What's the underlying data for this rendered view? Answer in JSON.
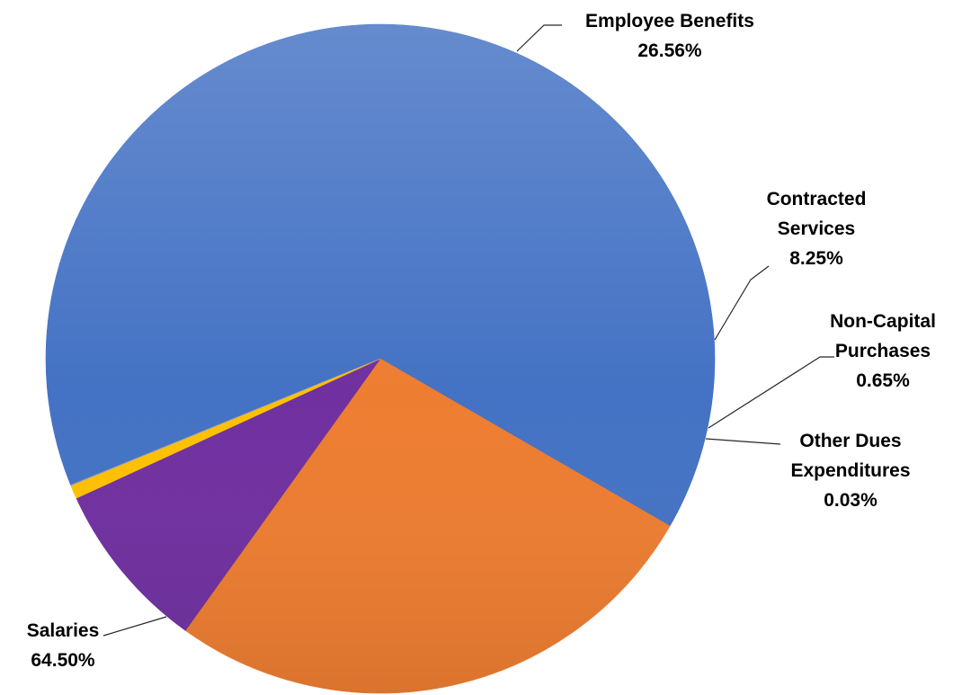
{
  "chart_data": {
    "type": "pie",
    "title": "",
    "slices": [
      {
        "label_lines": [
          "Salaries"
        ],
        "label": "Salaries",
        "value": 64.5,
        "value_text": "64.50%",
        "color": "#4472C4"
      },
      {
        "label_lines": [
          "Employee Benefits"
        ],
        "label": "Employee Benefits",
        "value": 26.56,
        "value_text": "26.56%",
        "color": "#ED7D31"
      },
      {
        "label_lines": [
          "Contracted",
          "Services"
        ],
        "label": "Contracted Services",
        "value": 8.25,
        "value_text": "8.25%",
        "color": "#7030A0"
      },
      {
        "label_lines": [
          "Non-Capital",
          "Purchases"
        ],
        "label": "Non-Capital Purchases",
        "value": 0.65,
        "value_text": "0.65%",
        "color": "#FFC000"
      },
      {
        "label_lines": [
          "Other Dues",
          "Expenditures"
        ],
        "label": "Other Dues Expenditures",
        "value": 0.03,
        "value_text": "0.03%",
        "color": "#A5A5A5"
      }
    ],
    "legend": "none",
    "data_labels": "outside with leader lines"
  }
}
